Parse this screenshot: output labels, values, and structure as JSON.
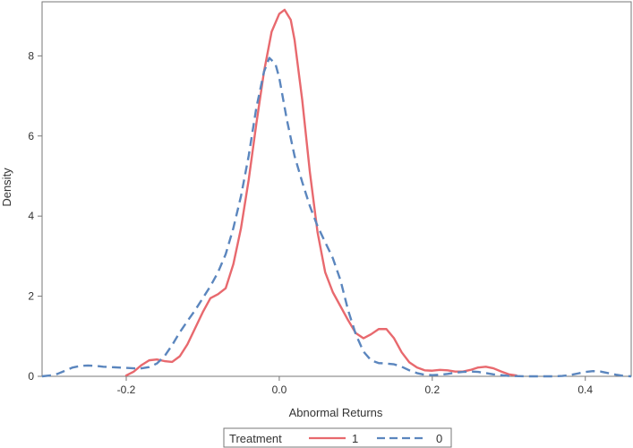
{
  "chart_data": {
    "type": "line",
    "title": "",
    "xlabel": "Abnormal Returns",
    "ylabel": "Density",
    "xlim": [
      -0.31,
      0.46
    ],
    "ylim": [
      0,
      9.35
    ],
    "x_ticks": [
      -0.2,
      0,
      0.2,
      0.4
    ],
    "x_tick_labels": [
      "-0.2",
      "0.0",
      "0.2",
      "0.4"
    ],
    "y_ticks": [
      0,
      2,
      4,
      6,
      8
    ],
    "y_tick_labels": [
      "0",
      "2",
      "4",
      "6",
      "8"
    ],
    "grid": false,
    "legend": {
      "title": "Treatment",
      "placement": "bottom-center"
    },
    "series": [
      {
        "name": "1",
        "color": "#e8696e",
        "dash": "solid",
        "points": [
          [
            -0.2,
            0.02
          ],
          [
            -0.19,
            0.12
          ],
          [
            -0.18,
            0.28
          ],
          [
            -0.17,
            0.4
          ],
          [
            -0.16,
            0.42
          ],
          [
            -0.15,
            0.38
          ],
          [
            -0.14,
            0.36
          ],
          [
            -0.13,
            0.5
          ],
          [
            -0.12,
            0.8
          ],
          [
            -0.11,
            1.2
          ],
          [
            -0.1,
            1.6
          ],
          [
            -0.09,
            1.95
          ],
          [
            -0.08,
            2.05
          ],
          [
            -0.07,
            2.2
          ],
          [
            -0.06,
            2.8
          ],
          [
            -0.05,
            3.7
          ],
          [
            -0.04,
            4.9
          ],
          [
            -0.03,
            6.3
          ],
          [
            -0.02,
            7.6
          ],
          [
            -0.01,
            8.6
          ],
          [
            0.0,
            9.05
          ],
          [
            0.007,
            9.15
          ],
          [
            0.015,
            8.9
          ],
          [
            0.02,
            8.4
          ],
          [
            0.03,
            6.9
          ],
          [
            0.04,
            5.1
          ],
          [
            0.05,
            3.6
          ],
          [
            0.06,
            2.6
          ],
          [
            0.07,
            2.1
          ],
          [
            0.08,
            1.75
          ],
          [
            0.09,
            1.4
          ],
          [
            0.1,
            1.08
          ],
          [
            0.11,
            0.95
          ],
          [
            0.12,
            1.05
          ],
          [
            0.13,
            1.18
          ],
          [
            0.14,
            1.18
          ],
          [
            0.15,
            0.95
          ],
          [
            0.16,
            0.6
          ],
          [
            0.17,
            0.35
          ],
          [
            0.18,
            0.22
          ],
          [
            0.19,
            0.15
          ],
          [
            0.2,
            0.14
          ],
          [
            0.21,
            0.16
          ],
          [
            0.22,
            0.15
          ],
          [
            0.23,
            0.12
          ],
          [
            0.24,
            0.12
          ],
          [
            0.25,
            0.16
          ],
          [
            0.26,
            0.22
          ],
          [
            0.27,
            0.24
          ],
          [
            0.28,
            0.2
          ],
          [
            0.29,
            0.12
          ],
          [
            0.3,
            0.05
          ],
          [
            0.31,
            0.02
          ]
        ]
      },
      {
        "name": "0",
        "color": "#5b86be",
        "dash": "dashed",
        "points": [
          [
            -0.31,
            0.0
          ],
          [
            -0.3,
            0.02
          ],
          [
            -0.29,
            0.06
          ],
          [
            -0.28,
            0.14
          ],
          [
            -0.27,
            0.22
          ],
          [
            -0.26,
            0.26
          ],
          [
            -0.25,
            0.27
          ],
          [
            -0.24,
            0.26
          ],
          [
            -0.23,
            0.24
          ],
          [
            -0.22,
            0.23
          ],
          [
            -0.21,
            0.22
          ],
          [
            -0.2,
            0.21
          ],
          [
            -0.19,
            0.2
          ],
          [
            -0.18,
            0.2
          ],
          [
            -0.17,
            0.23
          ],
          [
            -0.16,
            0.32
          ],
          [
            -0.15,
            0.5
          ],
          [
            -0.14,
            0.78
          ],
          [
            -0.13,
            1.1
          ],
          [
            -0.12,
            1.38
          ],
          [
            -0.11,
            1.65
          ],
          [
            -0.1,
            1.95
          ],
          [
            -0.09,
            2.25
          ],
          [
            -0.08,
            2.6
          ],
          [
            -0.07,
            3.05
          ],
          [
            -0.06,
            3.7
          ],
          [
            -0.05,
            4.5
          ],
          [
            -0.04,
            5.5
          ],
          [
            -0.03,
            6.7
          ],
          [
            -0.02,
            7.6
          ],
          [
            -0.013,
            7.95
          ],
          [
            -0.005,
            7.8
          ],
          [
            0.0,
            7.45
          ],
          [
            0.01,
            6.4
          ],
          [
            0.02,
            5.5
          ],
          [
            0.03,
            4.85
          ],
          [
            0.04,
            4.25
          ],
          [
            0.05,
            3.75
          ],
          [
            0.06,
            3.35
          ],
          [
            0.07,
            2.95
          ],
          [
            0.08,
            2.4
          ],
          [
            0.09,
            1.65
          ],
          [
            0.1,
            1.05
          ],
          [
            0.11,
            0.62
          ],
          [
            0.12,
            0.4
          ],
          [
            0.13,
            0.33
          ],
          [
            0.14,
            0.32
          ],
          [
            0.15,
            0.3
          ],
          [
            0.16,
            0.24
          ],
          [
            0.17,
            0.15
          ],
          [
            0.18,
            0.08
          ],
          [
            0.19,
            0.04
          ],
          [
            0.2,
            0.03
          ],
          [
            0.21,
            0.04
          ],
          [
            0.22,
            0.06
          ],
          [
            0.23,
            0.09
          ],
          [
            0.24,
            0.11
          ],
          [
            0.25,
            0.12
          ],
          [
            0.26,
            0.11
          ],
          [
            0.27,
            0.08
          ],
          [
            0.28,
            0.05
          ],
          [
            0.29,
            0.03
          ],
          [
            0.3,
            0.01
          ],
          [
            0.32,
            0.0
          ],
          [
            0.34,
            0.0
          ],
          [
            0.36,
            0.0
          ],
          [
            0.37,
            0.01
          ],
          [
            0.38,
            0.03
          ],
          [
            0.39,
            0.07
          ],
          [
            0.4,
            0.11
          ],
          [
            0.41,
            0.13
          ],
          [
            0.42,
            0.12
          ],
          [
            0.43,
            0.08
          ],
          [
            0.44,
            0.04
          ],
          [
            0.45,
            0.01
          ],
          [
            0.46,
            0.0
          ]
        ]
      }
    ]
  }
}
